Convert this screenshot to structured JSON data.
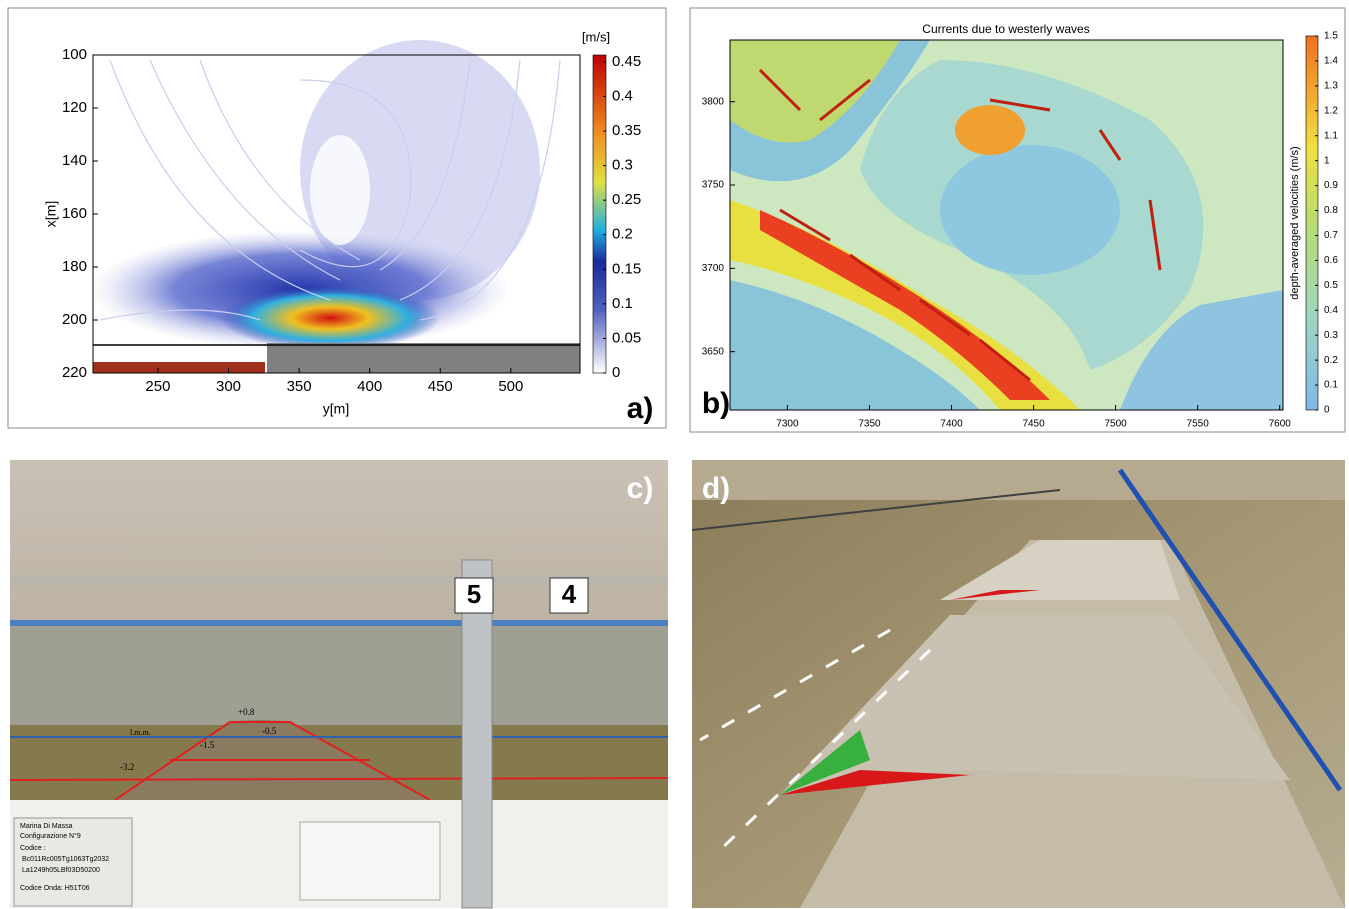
{
  "panels": [
    {
      "label": "a)",
      "xlabel": "y[m]",
      "ylabel": "x[m]",
      "xlim": [
        204,
        549
      ],
      "xticks": [
        250,
        300,
        350,
        400,
        450,
        500
      ],
      "ylim": [
        100,
        220
      ],
      "yticks": [
        100,
        120,
        140,
        160,
        180,
        200,
        220
      ],
      "colorbar": {
        "label": "[m/s]",
        "lim": [
          0,
          0.46
        ],
        "ticks": [
          0,
          0.05,
          0.1,
          0.15,
          0.2,
          0.25,
          0.3,
          0.35,
          0.4,
          0.45
        ]
      }
    },
    {
      "label": "b)",
      "title": "Currents due to westerly waves",
      "xlim": [
        7265,
        7602
      ],
      "xticks": [
        7300,
        7350,
        7400,
        7450,
        7500,
        7550,
        7600
      ],
      "ylim": [
        3615,
        3837
      ],
      "yticks": [
        3650,
        3700,
        3750,
        3800
      ],
      "colorbar": {
        "label": "depth-averaged velocities (m/s)",
        "lim": [
          0,
          1.5
        ],
        "ticks": [
          0,
          0.1,
          0.2,
          0.3,
          0.4,
          0.5,
          0.6,
          0.7,
          0.8,
          0.9,
          1,
          1.1,
          1.2,
          1.3,
          1.4,
          1.5
        ]
      }
    },
    {
      "label": "c)",
      "signs": [
        "5",
        "4"
      ],
      "levels": [
        "+0.8",
        "-0.5",
        "-1.5",
        "-3.2",
        "l.m.m."
      ],
      "card": [
        "Marina Di Massa",
        "Configurazione N°9",
        "Codice :",
        "Bc011Rc005Tg1063Tg2032",
        "La1249h05LBf03D50200",
        "Codice Onda:  H51T06"
      ]
    },
    {
      "label": "d)"
    }
  ]
}
